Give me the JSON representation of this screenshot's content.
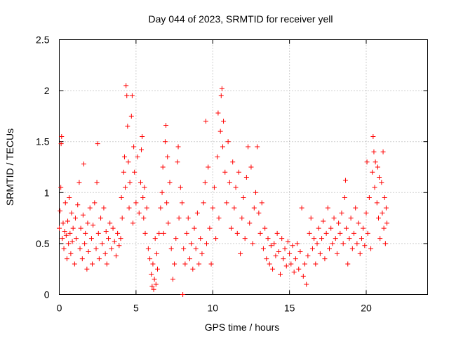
{
  "chart_data": {
    "type": "scatter",
    "title": "Day 044 of 2023, SRMTID for receiver yell",
    "xlabel": "GPS time / hours",
    "ylabel": "SRMTID / TECUs",
    "xlim": [
      0,
      24
    ],
    "ylim": [
      0,
      2.5
    ],
    "x_ticks": [
      0,
      5,
      10,
      15,
      20
    ],
    "x_tick_labels": [
      "0",
      "5",
      "10",
      "15",
      "20"
    ],
    "y_ticks": [
      0,
      0.5,
      1,
      1.5,
      2,
      2.5
    ],
    "y_tick_labels": [
      "0",
      "0.5",
      "1",
      "1.5",
      "2",
      "2.5"
    ],
    "grid": true,
    "marker": "+",
    "point_color": "#ff0000",
    "series": [
      {
        "name": "SRMTID",
        "points": [
          [
            0.0,
            0.65
          ],
          [
            0.05,
            0.82
          ],
          [
            0.1,
            1.05
          ],
          [
            0.12,
            1.48
          ],
          [
            0.15,
            1.55
          ],
          [
            0.2,
            0.55
          ],
          [
            0.25,
            0.7
          ],
          [
            0.3,
            0.45
          ],
          [
            0.35,
            0.62
          ],
          [
            0.4,
            0.9
          ],
          [
            0.45,
            0.58
          ],
          [
            0.5,
            0.35
          ],
          [
            0.55,
            0.72
          ],
          [
            0.6,
            0.5
          ],
          [
            0.65,
            0.95
          ],
          [
            0.7,
            0.6
          ],
          [
            0.75,
            0.4
          ],
          [
            0.8,
            0.8
          ],
          [
            0.85,
            0.52
          ],
          [
            0.9,
            0.65
          ],
          [
            1.0,
            0.3
          ],
          [
            1.05,
            0.75
          ],
          [
            1.1,
            0.55
          ],
          [
            1.2,
            0.88
          ],
          [
            1.3,
            1.1
          ],
          [
            1.35,
            0.45
          ],
          [
            1.4,
            0.65
          ],
          [
            1.5,
            0.35
          ],
          [
            1.55,
            0.78
          ],
          [
            1.6,
            1.28
          ],
          [
            1.65,
            0.5
          ],
          [
            1.7,
            0.6
          ],
          [
            1.8,
            0.25
          ],
          [
            1.85,
            0.7
          ],
          [
            1.9,
            0.42
          ],
          [
            2.0,
            0.85
          ],
          [
            2.1,
            0.55
          ],
          [
            2.15,
            0.3
          ],
          [
            2.2,
            0.68
          ],
          [
            2.3,
            0.9
          ],
          [
            2.4,
            0.45
          ],
          [
            2.45,
            1.1
          ],
          [
            2.5,
            1.48
          ],
          [
            2.55,
            0.6
          ],
          [
            2.6,
            0.35
          ],
          [
            2.7,
            0.75
          ],
          [
            2.8,
            0.5
          ],
          [
            2.9,
            0.85
          ],
          [
            3.0,
            0.4
          ],
          [
            3.05,
            0.62
          ],
          [
            3.1,
            0.3
          ],
          [
            3.2,
            0.55
          ],
          [
            3.3,
            0.7
          ],
          [
            3.4,
            0.45
          ],
          [
            3.5,
            0.65
          ],
          [
            3.6,
            0.52
          ],
          [
            3.7,
            0.38
          ],
          [
            3.8,
            0.6
          ],
          [
            3.9,
            0.48
          ],
          [
            4.0,
            0.55
          ],
          [
            4.05,
            0.95
          ],
          [
            4.1,
            0.75
          ],
          [
            4.2,
            1.2
          ],
          [
            4.25,
            1.35
          ],
          [
            4.3,
            1.05
          ],
          [
            4.35,
            2.05
          ],
          [
            4.4,
            1.95
          ],
          [
            4.45,
            1.65
          ],
          [
            4.5,
            1.3
          ],
          [
            4.55,
            0.85
          ],
          [
            4.6,
            1.1
          ],
          [
            4.7,
            1.75
          ],
          [
            4.75,
            1.95
          ],
          [
            4.8,
            0.7
          ],
          [
            4.85,
            1.45
          ],
          [
            4.9,
            1.2
          ],
          [
            5.0,
            0.9
          ],
          [
            5.1,
            1.35
          ],
          [
            5.2,
            0.8
          ],
          [
            5.3,
            1.1
          ],
          [
            5.35,
            1.42
          ],
          [
            5.4,
            1.55
          ],
          [
            5.45,
            0.95
          ],
          [
            5.5,
            0.75
          ],
          [
            5.55,
            1.05
          ],
          [
            5.6,
            0.6
          ],
          [
            5.7,
            0.85
          ],
          [
            5.8,
            0.45
          ],
          [
            5.9,
            0.35
          ],
          [
            6.0,
            0.2
          ],
          [
            6.05,
            0.08
          ],
          [
            6.1,
            0.3
          ],
          [
            6.15,
            0.05
          ],
          [
            6.2,
            0.15
          ],
          [
            6.25,
            0.55
          ],
          [
            6.3,
            0.1
          ],
          [
            6.35,
            0.4
          ],
          [
            6.4,
            0.25
          ],
          [
            6.5,
            0.6
          ],
          [
            6.6,
            0.85
          ],
          [
            6.7,
            1.0
          ],
          [
            6.75,
            1.25
          ],
          [
            6.8,
            0.6
          ],
          [
            6.9,
            1.5
          ],
          [
            6.95,
            1.66
          ],
          [
            7.0,
            0.9
          ],
          [
            7.05,
            1.35
          ],
          [
            7.1,
            0.7
          ],
          [
            7.2,
            1.1
          ],
          [
            7.3,
            0.45
          ],
          [
            7.4,
            0.15
          ],
          [
            7.5,
            0.3
          ],
          [
            7.6,
            0.55
          ],
          [
            7.7,
            1.3
          ],
          [
            7.75,
            1.45
          ],
          [
            7.8,
            0.75
          ],
          [
            7.9,
            1.05
          ],
          [
            8.0,
            0.9
          ],
          [
            8.05,
            0.0
          ],
          [
            8.1,
            0.45
          ],
          [
            8.2,
            0.3
          ],
          [
            8.3,
            0.6
          ],
          [
            8.4,
            0.75
          ],
          [
            8.5,
            0.35
          ],
          [
            8.6,
            0.5
          ],
          [
            8.7,
            0.25
          ],
          [
            8.8,
            0.65
          ],
          [
            8.9,
            0.45
          ],
          [
            9.0,
            0.8
          ],
          [
            9.1,
            0.3
          ],
          [
            9.2,
            0.55
          ],
          [
            9.3,
            0.4
          ],
          [
            9.4,
            0.9
          ],
          [
            9.5,
            1.1
          ],
          [
            9.55,
            1.7
          ],
          [
            9.6,
            0.5
          ],
          [
            9.7,
            1.25
          ],
          [
            9.8,
            0.65
          ],
          [
            9.9,
            0.3
          ],
          [
            10.0,
            0.85
          ],
          [
            10.1,
            1.05
          ],
          [
            10.2,
            0.55
          ],
          [
            10.3,
            1.35
          ],
          [
            10.35,
            1.78
          ],
          [
            10.4,
            0.75
          ],
          [
            10.5,
            1.6
          ],
          [
            10.55,
            1.95
          ],
          [
            10.6,
            2.02
          ],
          [
            10.65,
            1.45
          ],
          [
            10.7,
            1.7
          ],
          [
            10.8,
            1.2
          ],
          [
            10.9,
            0.9
          ],
          [
            11.0,
            1.5
          ],
          [
            11.1,
            1.1
          ],
          [
            11.2,
            0.65
          ],
          [
            11.3,
            1.3
          ],
          [
            11.4,
            0.85
          ],
          [
            11.5,
            1.05
          ],
          [
            11.6,
            0.6
          ],
          [
            11.7,
            1.2
          ],
          [
            11.8,
            0.4
          ],
          [
            11.9,
            0.75
          ],
          [
            12.0,
            0.95
          ],
          [
            12.1,
            0.55
          ],
          [
            12.2,
            1.15
          ],
          [
            12.3,
            1.45
          ],
          [
            12.4,
            0.7
          ],
          [
            12.5,
            1.25
          ],
          [
            12.6,
            0.5
          ],
          [
            12.7,
            0.85
          ],
          [
            12.8,
            1.0
          ],
          [
            12.9,
            1.45
          ],
          [
            13.0,
            0.8
          ],
          [
            13.1,
            0.6
          ],
          [
            13.2,
            0.9
          ],
          [
            13.3,
            0.45
          ],
          [
            13.4,
            0.65
          ],
          [
            13.5,
            0.35
          ],
          [
            13.6,
            0.55
          ],
          [
            13.7,
            0.3
          ],
          [
            13.8,
            0.48
          ],
          [
            13.9,
            0.25
          ],
          [
            14.0,
            0.5
          ],
          [
            14.1,
            0.38
          ],
          [
            14.2,
            0.6
          ],
          [
            14.3,
            0.42
          ],
          [
            14.4,
            0.2
          ],
          [
            14.5,
            0.55
          ],
          [
            14.6,
            0.35
          ],
          [
            14.7,
            0.45
          ],
          [
            14.8,
            0.28
          ],
          [
            14.9,
            0.52
          ],
          [
            15.0,
            0.4
          ],
          [
            15.1,
            0.3
          ],
          [
            15.2,
            0.48
          ],
          [
            15.3,
            0.22
          ],
          [
            15.4,
            0.35
          ],
          [
            15.5,
            0.5
          ],
          [
            15.6,
            0.25
          ],
          [
            15.7,
            0.42
          ],
          [
            15.8,
            0.85
          ],
          [
            15.9,
            0.18
          ],
          [
            16.0,
            0.3
          ],
          [
            16.1,
            0.1
          ],
          [
            16.2,
            0.38
          ],
          [
            16.3,
            0.6
          ],
          [
            16.4,
            0.75
          ],
          [
            16.5,
            0.45
          ],
          [
            16.6,
            0.55
          ],
          [
            16.7,
            0.3
          ],
          [
            16.8,
            0.5
          ],
          [
            16.9,
            0.65
          ],
          [
            17.0,
            0.4
          ],
          [
            17.1,
            0.55
          ],
          [
            17.2,
            0.72
          ],
          [
            17.3,
            0.35
          ],
          [
            17.4,
            0.6
          ],
          [
            17.5,
            0.85
          ],
          [
            17.6,
            0.45
          ],
          [
            17.7,
            0.65
          ],
          [
            17.8,
            0.5
          ],
          [
            17.9,
            0.75
          ],
          [
            18.0,
            0.55
          ],
          [
            18.1,
            0.4
          ],
          [
            18.2,
            0.7
          ],
          [
            18.3,
            0.6
          ],
          [
            18.4,
            0.8
          ],
          [
            18.5,
            0.5
          ],
          [
            18.6,
            0.95
          ],
          [
            18.65,
            1.12
          ],
          [
            18.7,
            0.65
          ],
          [
            18.8,
            0.3
          ],
          [
            18.9,
            0.55
          ],
          [
            19.0,
            0.75
          ],
          [
            19.1,
            0.45
          ],
          [
            19.2,
            0.6
          ],
          [
            19.3,
            0.85
          ],
          [
            19.4,
            0.5
          ],
          [
            19.5,
            0.7
          ],
          [
            19.6,
            0.4
          ],
          [
            19.7,
            0.55
          ],
          [
            19.8,
            0.65
          ],
          [
            19.9,
            0.48
          ],
          [
            20.0,
            0.8
          ],
          [
            20.05,
            1.3
          ],
          [
            20.1,
            0.6
          ],
          [
            20.2,
            0.95
          ],
          [
            20.3,
            0.45
          ],
          [
            20.4,
            1.2
          ],
          [
            20.45,
            1.55
          ],
          [
            20.5,
            1.4
          ],
          [
            20.55,
            1.05
          ],
          [
            20.6,
            1.3
          ],
          [
            20.7,
            0.9
          ],
          [
            20.75,
            1.25
          ],
          [
            20.8,
            0.75
          ],
          [
            20.85,
            1.15
          ],
          [
            20.9,
            0.55
          ],
          [
            21.0,
            1.1
          ],
          [
            21.05,
            0.8
          ],
          [
            21.1,
            1.4
          ],
          [
            21.15,
            0.65
          ],
          [
            21.2,
            0.95
          ],
          [
            21.25,
            0.5
          ],
          [
            21.3,
            0.85
          ],
          [
            21.35,
            0.7
          ]
        ]
      }
    ]
  }
}
